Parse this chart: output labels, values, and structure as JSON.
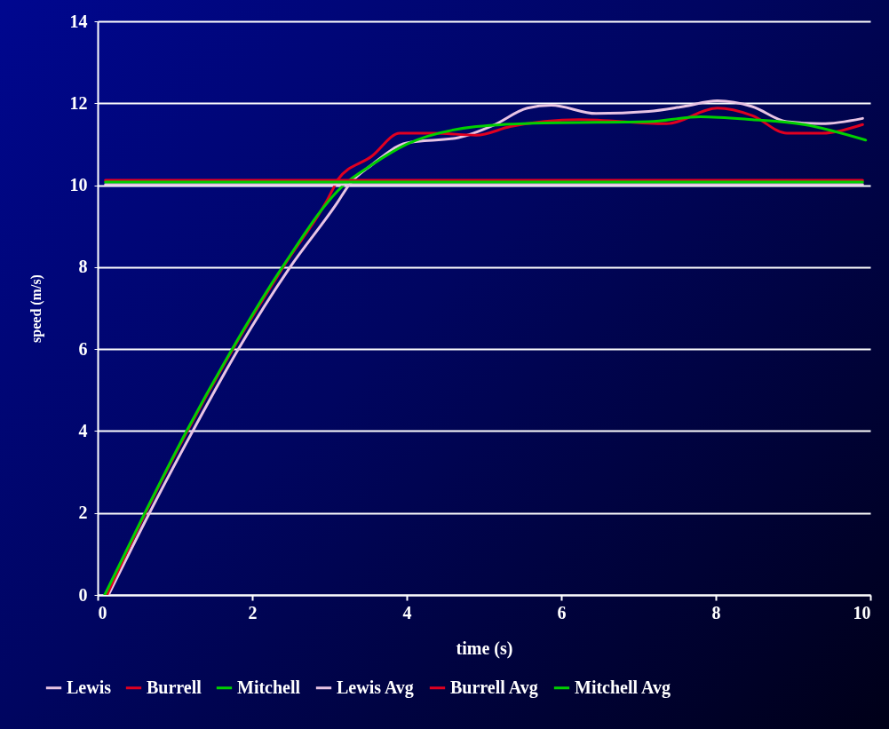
{
  "chart_data": {
    "type": "line",
    "xlabel": "time (s)",
    "ylabel": "speed (m/s)",
    "xlim": [
      0,
      10
    ],
    "ylim": [
      0,
      14
    ],
    "xticks": [
      0,
      2,
      4,
      6,
      8,
      10
    ],
    "yticks": [
      0,
      2,
      4,
      6,
      8,
      10,
      12,
      14
    ],
    "grid": "y",
    "legend": "bottom",
    "line_style": "solid",
    "marker": "none",
    "series": [
      {
        "name": "Lewis",
        "color": "#e8c4e4",
        "x": [
          0.14,
          0.67,
          1.23,
          1.82,
          2.49,
          3.1,
          3.25,
          3.55,
          4.0,
          4.67,
          5.12,
          5.56,
          5.87,
          6.45,
          7.13,
          7.58,
          8.02,
          8.47,
          8.92,
          9.37,
          9.9
        ],
        "values": [
          0,
          2,
          4,
          6,
          8,
          9.57,
          10,
          10.5,
          11.03,
          11.16,
          11.46,
          11.88,
          11.95,
          11.75,
          11.8,
          11.92,
          12.06,
          11.92,
          11.55,
          11.5,
          11.63
        ]
      },
      {
        "name": "Burrell",
        "color": "#e00020",
        "x": [
          0.12,
          0.62,
          1.16,
          1.75,
          2.4,
          3.07,
          3.1,
          3.55,
          3.91,
          4.36,
          4.9,
          5.34,
          6.23,
          7.36,
          8.02,
          8.47,
          8.92,
          9.37,
          9.9
        ],
        "values": [
          0,
          2,
          4,
          6,
          8,
          10,
          10.12,
          10.71,
          11.27,
          11.27,
          11.22,
          11.43,
          11.6,
          11.5,
          11.88,
          11.7,
          11.27,
          11.27,
          11.48
        ]
      },
      {
        "name": "Mitchell",
        "color": "#00d000",
        "x": [
          0.09,
          0.61,
          1.15,
          1.74,
          2.39,
          3.18,
          3.55,
          4.0,
          4.9,
          5.78,
          7.13,
          7.8,
          8.47,
          9.14,
          9.94
        ],
        "values": [
          0,
          2,
          4,
          6,
          8,
          10,
          10.5,
          11.0,
          11.43,
          11.52,
          11.55,
          11.67,
          11.6,
          11.48,
          11.1
        ]
      },
      {
        "name": "Lewis Avg",
        "color": "#e8c4e4",
        "x": [
          0.1,
          9.9
        ],
        "values": [
          10.02,
          10.02
        ]
      },
      {
        "name": "Burrell Avg",
        "color": "#e00020",
        "x": [
          0.1,
          9.9
        ],
        "values": [
          10.12,
          10.12
        ]
      },
      {
        "name": "Mitchell Avg",
        "color": "#00d000",
        "x": [
          0.1,
          9.9
        ],
        "values": [
          10.08,
          10.08
        ]
      }
    ]
  }
}
